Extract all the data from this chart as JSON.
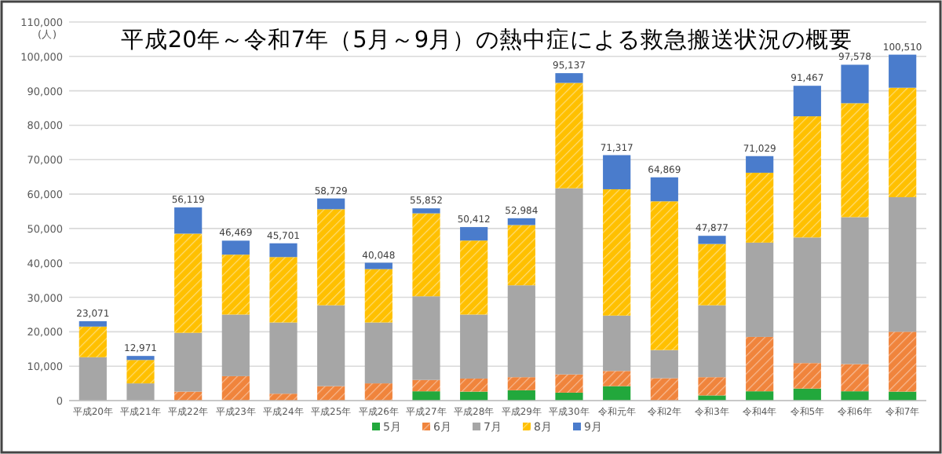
{
  "chart_data": {
    "type": "bar",
    "stacked": true,
    "title": "平成20年～令和7年（5月～9月）の熱中症による救急搬送状況の概要",
    "ylabel": "(人)",
    "categories": [
      "平成20年",
      "平成21年",
      "平成22年",
      "平成23年",
      "平成24年",
      "平成25年",
      "平成26年",
      "平成27年",
      "平成28年",
      "平成29年",
      "平成30年",
      "令和元年",
      "令和2年",
      "令和3年",
      "令和4年",
      "令和5年",
      "令和6年",
      "令和7年"
    ],
    "series": [
      {
        "name": "5月",
        "color": "#22a83c",
        "values": [
          0,
          0,
          0,
          0,
          0,
          0,
          0,
          2700,
          2600,
          3000,
          2300,
          4200,
          0,
          1500,
          2700,
          3500,
          2700,
          2600
        ]
      },
      {
        "name": "6月",
        "color": "#f0843c",
        "values": [
          0,
          0,
          2600,
          7100,
          2000,
          4200,
          5000,
          3300,
          3800,
          3800,
          5300,
          4400,
          6500,
          5300,
          15800,
          7400,
          7900,
          17400
        ]
      },
      {
        "name": "7月",
        "color": "#a6a6a6",
        "values": [
          12600,
          5000,
          17100,
          17900,
          20700,
          23500,
          17700,
          24300,
          18600,
          26700,
          54100,
          16100,
          8200,
          20900,
          27400,
          36500,
          42700,
          39100
        ]
      },
      {
        "name": "8月",
        "color": "#ffc000",
        "values": [
          8900,
          6800,
          28800,
          17400,
          19000,
          27900,
          15500,
          24100,
          21500,
          17500,
          30600,
          36700,
          43200,
          17800,
          20300,
          35200,
          33100,
          31800
        ]
      },
      {
        "name": "9月",
        "color": "#4a7ccc",
        "values": [
          1571,
          1171,
          7619,
          4069,
          4001,
          3129,
          1848,
          1452,
          3912,
          1984,
          2837,
          9917,
          6969,
          2377,
          4829,
          8867,
          11178,
          9610
        ]
      }
    ],
    "totals": [
      "23,071",
      "12,971",
      "56,119",
      "46,469",
      "45,701",
      "58,729",
      "40,048",
      "55,852",
      "50,412",
      "52,984",
      "95,137",
      "71,317",
      "64,869",
      "47,877",
      "71,029",
      "91,467",
      "97,578",
      "100,510"
    ],
    "ylim": [
      0,
      110000
    ],
    "yticks": [
      0,
      {
        "value": 10000,
        "label": "10,000"
      },
      {
        "value": 20000,
        "label": "20,000"
      },
      {
        "value": 30000,
        "label": "30,000"
      },
      {
        "value": 40000,
        "label": "40,000"
      },
      {
        "value": 50000,
        "label": "50,000"
      },
      {
        "value": 60000,
        "label": "60,000"
      },
      {
        "value": 70000,
        "label": "70,000"
      },
      {
        "value": 80000,
        "label": "80,000"
      },
      {
        "value": 90000,
        "label": "90,000"
      },
      {
        "value": 100000,
        "label": "100,000"
      },
      {
        "value": 110000,
        "label": "110,000"
      }
    ],
    "grid": "y",
    "legend": "bottom"
  }
}
